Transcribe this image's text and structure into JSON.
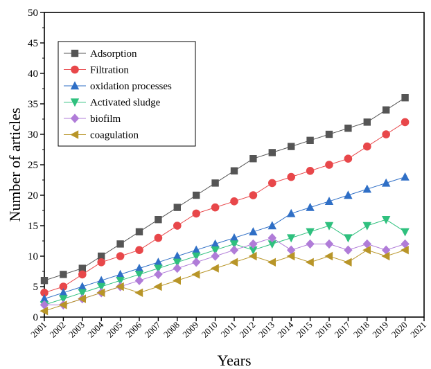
{
  "chart_data": {
    "type": "line",
    "title": "",
    "xlabel": "Years",
    "ylabel": "Number of articles",
    "xlim": [
      2001,
      2021
    ],
    "ylim": [
      0,
      50
    ],
    "x_ticks": [
      "2001",
      "2002",
      "2003",
      "2004",
      "2005",
      "2006",
      "2007",
      "2008",
      "2009",
      "2010",
      "2011",
      "2012",
      "2013",
      "2014",
      "2015",
      "2016",
      "2017",
      "2018",
      "2019",
      "2020",
      "2021"
    ],
    "y_ticks": [
      "0",
      "5",
      "10",
      "15",
      "20",
      "25",
      "30",
      "35",
      "40",
      "45",
      "50"
    ],
    "grid": false,
    "legend_position": "top-left",
    "x": [
      2001,
      2002,
      2003,
      2004,
      2005,
      2006,
      2007,
      2008,
      2009,
      2010,
      2011,
      2012,
      2013,
      2014,
      2015,
      2016,
      2017,
      2018,
      2019,
      2020
    ],
    "series": [
      {
        "name": "Adsorption",
        "marker": "square",
        "color": "#555555",
        "values": [
          6,
          7,
          8,
          10,
          12,
          14,
          16,
          18,
          20,
          22,
          24,
          26,
          27,
          28,
          29,
          30,
          31,
          32,
          34,
          36
        ]
      },
      {
        "name": "Filtration",
        "marker": "circle",
        "color": "#e8474a",
        "values": [
          4,
          5,
          7,
          9,
          10,
          11,
          13,
          15,
          17,
          18,
          19,
          20,
          22,
          23,
          24,
          25,
          26,
          28,
          30,
          32
        ]
      },
      {
        "name": "oxidation processes",
        "marker": "triangle-up",
        "color": "#2f6fc6",
        "values": [
          3,
          4,
          5,
          6,
          7,
          8,
          9,
          10,
          11,
          12,
          13,
          14,
          15,
          17,
          18,
          19,
          20,
          21,
          22,
          23
        ]
      },
      {
        "name": "Activated sludge",
        "marker": "triangle-down",
        "color": "#2fc07e",
        "values": [
          2,
          3,
          4,
          5,
          6,
          7,
          8,
          9,
          10,
          11,
          12,
          11,
          12,
          13,
          14,
          15,
          13,
          15,
          16,
          14
        ]
      },
      {
        "name": "biofilm",
        "marker": "diamond",
        "color": "#b07cd8",
        "values": [
          2,
          2,
          3,
          4,
          5,
          6,
          7,
          8,
          9,
          10,
          11,
          12,
          13,
          11,
          12,
          12,
          11,
          12,
          11,
          12
        ]
      },
      {
        "name": "coagulation",
        "marker": "triangle-left",
        "color": "#b89528",
        "values": [
          1,
          2,
          3,
          4,
          5,
          4,
          5,
          6,
          7,
          8,
          9,
          10,
          9,
          10,
          9,
          10,
          9,
          11,
          10,
          11
        ]
      }
    ]
  }
}
